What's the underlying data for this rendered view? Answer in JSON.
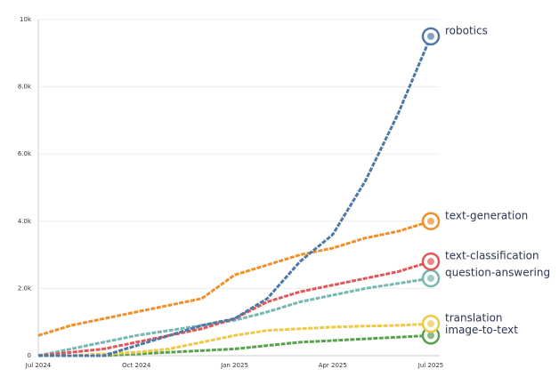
{
  "chart_data": {
    "type": "line",
    "x": [
      "Jul 2024",
      null,
      null,
      "Oct 2024",
      null,
      null,
      "Jan 2025",
      null,
      null,
      "Apr 2025",
      null,
      null,
      "Jul 2025"
    ],
    "ylim": [
      0,
      10000
    ],
    "yticks": [
      0,
      {
        "value": 2000,
        "label": "2.0k"
      },
      {
        "value": 4000,
        "label": "4.0k"
      },
      {
        "value": 6000,
        "label": "6.0k"
      },
      {
        "value": 8000,
        "label": "8.0k"
      },
      {
        "value": 10000,
        "label": "10k"
      }
    ],
    "grid": true,
    "series": [
      {
        "name": "robotics",
        "color": "#4e79a7",
        "values": [
          0,
          0,
          0,
          300,
          600,
          900,
          1100,
          1700,
          2800,
          3600,
          5200,
          7200,
          9500
        ]
      },
      {
        "name": "text-generation",
        "color": "#f28e2b",
        "values": [
          600,
          900,
          1100,
          1300,
          1500,
          1700,
          2400,
          2700,
          3000,
          3200,
          3500,
          3700,
          4000
        ]
      },
      {
        "name": "text-classification",
        "color": "#e15759",
        "values": [
          0,
          100,
          200,
          400,
          600,
          800,
          1100,
          1600,
          1900,
          2100,
          2300,
          2500,
          2800
        ]
      },
      {
        "name": "question-answering",
        "color": "#76b7b2",
        "values": [
          0,
          200,
          400,
          600,
          750,
          900,
          1050,
          1300,
          1600,
          1800,
          2000,
          2150,
          2300
        ]
      },
      {
        "name": "translation",
        "color": "#edc948",
        "values": [
          0,
          0,
          50,
          100,
          200,
          400,
          600,
          750,
          800,
          850,
          880,
          900,
          950
        ]
      },
      {
        "name": "image-to-text",
        "color": "#59a14f",
        "values": [
          0,
          0,
          0,
          50,
          100,
          150,
          200,
          300,
          400,
          450,
          500,
          550,
          600
        ]
      }
    ]
  }
}
